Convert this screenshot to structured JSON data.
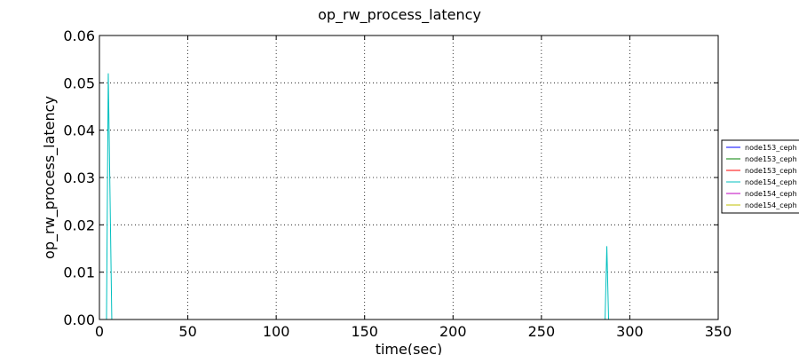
{
  "chart_data": {
    "type": "line",
    "title": "op_rw_process_latency",
    "xlabel": "time(sec)",
    "ylabel": "op_rw_process_latency",
    "xlim": [
      0,
      350
    ],
    "ylim": [
      0,
      0.06
    ],
    "xticks": [
      "0",
      "50",
      "100",
      "150",
      "200",
      "250",
      "300",
      "350"
    ],
    "yticks": [
      "0.00",
      "0.01",
      "0.02",
      "0.03",
      "0.04",
      "0.05",
      "0.06"
    ],
    "grid": true,
    "legend_position": "right, outside plot",
    "series": [
      {
        "name": "node153_ceph",
        "color": "#0000ff",
        "x": [
          0,
          310
        ],
        "y": [
          0,
          0
        ]
      },
      {
        "name": "node153_ceph",
        "color": "#008000",
        "x": [
          0,
          310
        ],
        "y": [
          0,
          0
        ]
      },
      {
        "name": "node153_ceph",
        "color": "#ff0000",
        "x": [
          0,
          310
        ],
        "y": [
          0,
          0
        ]
      },
      {
        "name": "node154_ceph",
        "color": "#00bfbf",
        "x": [
          0,
          4,
          5,
          7,
          8,
          286,
          287,
          288,
          310
        ],
        "y": [
          0,
          0,
          0.052,
          0,
          0,
          0,
          0.0155,
          0,
          0
        ]
      },
      {
        "name": "node154_ceph",
        "color": "#bf00bf",
        "x": [
          0,
          310
        ],
        "y": [
          0,
          0
        ]
      },
      {
        "name": "node154_ceph",
        "color": "#bfbf00",
        "x": [
          0,
          310
        ],
        "y": [
          0,
          0
        ]
      }
    ]
  }
}
